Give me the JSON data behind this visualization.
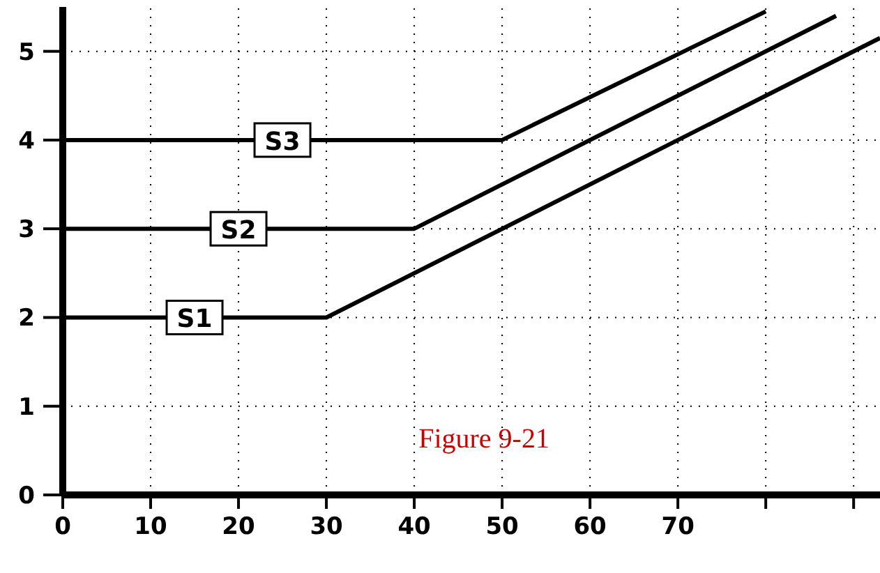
{
  "chart_data": {
    "type": "line",
    "xlim": [
      0,
      93
    ],
    "ylim": [
      0,
      5.5
    ],
    "xticks": [
      0,
      10,
      20,
      30,
      40,
      50,
      60,
      70,
      {
        "value": 80,
        "label": null
      },
      {
        "value": 90,
        "label": null
      }
    ],
    "yticks": [
      0,
      1,
      2,
      3,
      4,
      5
    ],
    "grid": true,
    "marker": "none",
    "line_style": "solid",
    "series": [
      {
        "name": "S1",
        "color": "#000000",
        "x": [
          0,
          30,
          93
        ],
        "values": [
          2,
          2,
          5.15
        ]
      },
      {
        "name": "S2",
        "color": "#000000",
        "x": [
          0,
          40,
          88
        ],
        "values": [
          3,
          3,
          5.4
        ]
      },
      {
        "name": "S3",
        "color": "#000000",
        "x": [
          0,
          50,
          80
        ],
        "values": [
          4,
          4,
          5.45
        ]
      }
    ],
    "annotations": [
      "Figure 9-21"
    ]
  }
}
